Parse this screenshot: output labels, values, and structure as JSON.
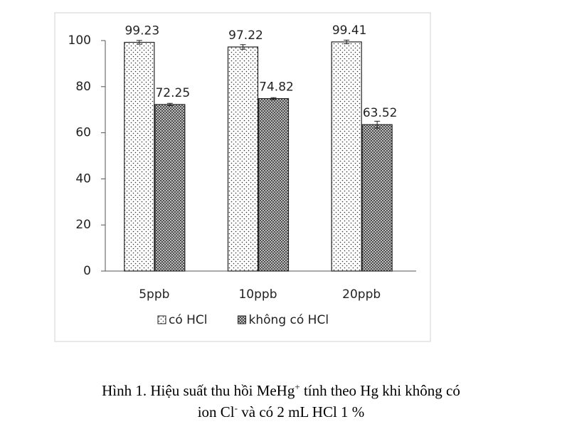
{
  "chart_data": {
    "type": "bar",
    "categories": [
      "5ppb",
      "10ppb",
      "20ppb"
    ],
    "series": [
      {
        "name": "có HCl",
        "color": "#ffffff",
        "values": [
          99.23,
          97.22,
          99.41
        ],
        "errors": [
          0.8,
          1.0,
          0.8
        ]
      },
      {
        "name": "không có HCl",
        "color": "#d9d9d9",
        "values": [
          72.25,
          74.82,
          63.52
        ],
        "errors": [
          0.5,
          0.4,
          1.5
        ]
      }
    ],
    "ylim": [
      0,
      100
    ],
    "yticks": [
      0,
      20,
      40,
      60,
      80,
      100
    ],
    "grid": false,
    "caption": [
      "Hình 1. Hiệu suất thu hồi MeHg",
      "+",
      " tính theo Hg khi không có",
      "ion Cl",
      "-",
      " và  có 2 mL HCl 1 %"
    ]
  }
}
